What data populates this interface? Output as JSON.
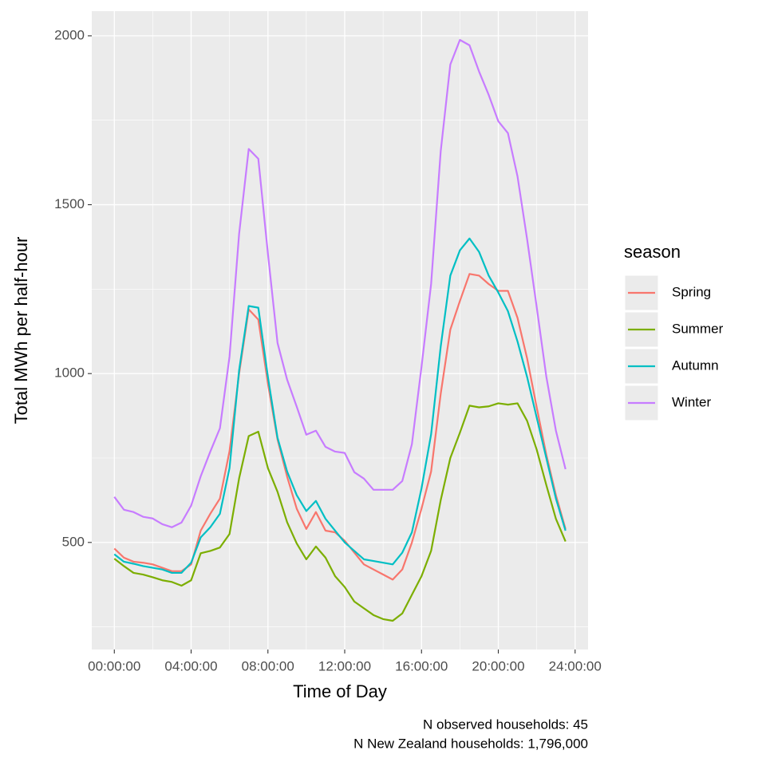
{
  "chart_data": {
    "type": "line",
    "x_label": "Time of Day",
    "y_label": "Total MWh per half-hour",
    "caption": [
      "N observed households: 45",
      "N New Zealand households: 1,796,000"
    ],
    "legend_title": "season",
    "legend_position": "right",
    "grid": true,
    "x": [
      0,
      0.5,
      1,
      1.5,
      2,
      2.5,
      3,
      3.5,
      4,
      4.5,
      5,
      5.5,
      6,
      6.5,
      7,
      7.5,
      8,
      8.5,
      9,
      9.5,
      10,
      10.5,
      11,
      11.5,
      12,
      12.5,
      13,
      13.5,
      14,
      14.5,
      15,
      15.5,
      16,
      16.5,
      17,
      17.5,
      18,
      18.5,
      19,
      19.5,
      20,
      20.5,
      21,
      21.5,
      22,
      22.5,
      23,
      23.5
    ],
    "xlim": [
      -1.175,
      24.675
    ],
    "xticks": [
      {
        "value": 0,
        "label": "00:00:00"
      },
      {
        "value": 4,
        "label": "04:00:00"
      },
      {
        "value": 8,
        "label": "08:00:00"
      },
      {
        "value": 12,
        "label": "12:00:00"
      },
      {
        "value": 16,
        "label": "16:00:00"
      },
      {
        "value": 20,
        "label": "20:00:00"
      },
      {
        "value": 24,
        "label": "24:00:00"
      }
    ],
    "ylim": [
      183,
      2073
    ],
    "yticks": [
      500,
      1000,
      1500,
      2000
    ],
    "series": [
      {
        "name": "Spring",
        "color": "#F8766D",
        "values": [
          482,
          455,
          443,
          440,
          435,
          425,
          415,
          415,
          435,
          535,
          585,
          630,
          770,
          1000,
          1190,
          1160,
          970,
          805,
          695,
          600,
          540,
          590,
          535,
          530,
          505,
          470,
          435,
          420,
          405,
          390,
          420,
          500,
          600,
          710,
          940,
          1130,
          1215,
          1295,
          1290,
          1265,
          1245,
          1245,
          1165,
          1045,
          900,
          760,
          640,
          540
        ]
      },
      {
        "name": "Summer",
        "color": "#7CAE00",
        "values": [
          452,
          430,
          410,
          405,
          397,
          388,
          383,
          372,
          388,
          468,
          475,
          485,
          525,
          690,
          815,
          828,
          720,
          650,
          560,
          497,
          450,
          488,
          455,
          400,
          368,
          325,
          305,
          285,
          273,
          268,
          290,
          345,
          400,
          475,
          625,
          750,
          825,
          905,
          900,
          903,
          912,
          908,
          912,
          860,
          775,
          670,
          570,
          503
        ]
      },
      {
        "name": "Autumn",
        "color": "#00BFC4",
        "values": [
          465,
          443,
          437,
          430,
          425,
          420,
          410,
          410,
          440,
          515,
          545,
          585,
          720,
          1010,
          1200,
          1195,
          990,
          810,
          710,
          640,
          593,
          623,
          570,
          535,
          500,
          475,
          450,
          445,
          440,
          435,
          470,
          530,
          660,
          820,
          1080,
          1290,
          1365,
          1400,
          1360,
          1290,
          1240,
          1185,
          1095,
          990,
          870,
          750,
          630,
          535
        ]
      },
      {
        "name": "Winter",
        "color": "#C77CFF",
        "values": [
          635,
          597,
          590,
          576,
          571,
          554,
          545,
          559,
          609,
          696,
          769,
          838,
          1050,
          1414,
          1665,
          1636,
          1355,
          1091,
          982,
          902,
          819,
          831,
          783,
          769,
          765,
          708,
          689,
          656,
          656,
          656,
          682,
          791,
          1020,
          1265,
          1658,
          1915,
          1988,
          1972,
          1894,
          1825,
          1747,
          1712,
          1584,
          1398,
          1197,
          991,
          831,
          717
        ]
      }
    ]
  }
}
